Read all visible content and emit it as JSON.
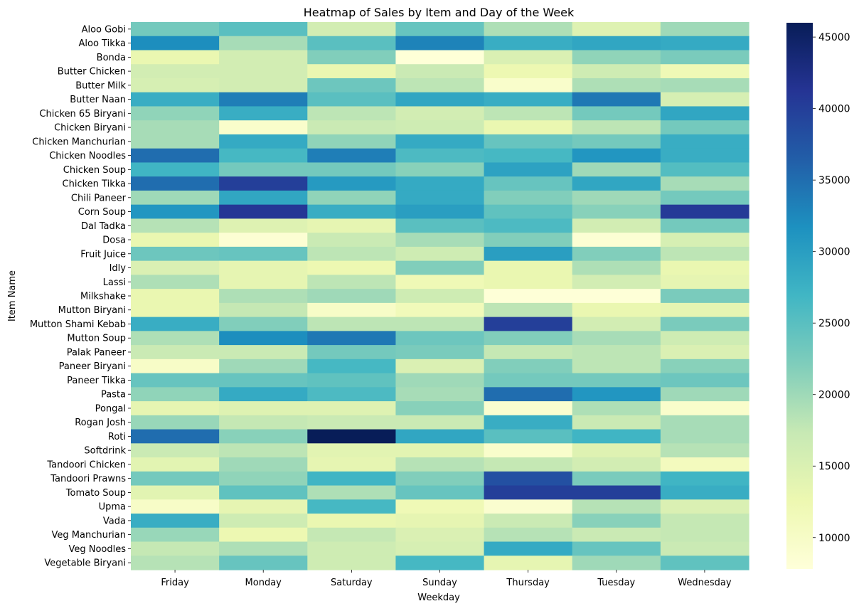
{
  "chart_data": {
    "type": "heatmap",
    "title": "Heatmap of Sales by Item and Day of the Week",
    "xlabel": "Weekday",
    "ylabel": "Item Name",
    "colormap": "YlGnBu",
    "vmin": 7800,
    "vmax": 46000,
    "colorbar_ticks": [
      10000,
      15000,
      20000,
      25000,
      30000,
      35000,
      40000,
      45000
    ],
    "colorbar_tick_labels": [
      "10000",
      "15000",
      "20000",
      "25000",
      "30000",
      "35000",
      "40000",
      "45000"
    ],
    "legend": "colorbar-right",
    "grid": false,
    "x_categories": [
      "Friday",
      "Monday",
      "Saturday",
      "Sunday",
      "Thursday",
      "Tuesday",
      "Wednesday"
    ],
    "y_categories": [
      "Aloo Gobi",
      "Aloo Tikka",
      "Bonda",
      "Butter Chicken",
      "Butter Milk",
      "Butter Naan",
      "Chicken 65 Biryani",
      "Chicken Biryani",
      "Chicken Manchurian",
      "Chicken Noodles",
      "Chicken Soup",
      "Chicken Tikka",
      "Chili Paneer",
      "Corn Soup",
      "Dal Tadka",
      "Dosa",
      "Fruit Juice",
      "Idly",
      "Lassi",
      "Milkshake",
      "Mutton Biryani",
      "Mutton Shami Kebab",
      "Mutton Soup",
      "Palak Paneer",
      "Paneer Biryani",
      "Paneer Tikka",
      "Pasta",
      "Pongal",
      "Rogan Josh",
      "Roti",
      "Softdrink",
      "Tandoori Chicken",
      "Tandoori Prawns",
      "Tomato Soup",
      "Upma",
      "Vada",
      "Veg Manchurian",
      "Veg Noodles",
      "Vegetable Biryani"
    ],
    "values": [
      [
        23000,
        25000,
        16000,
        24000,
        19000,
        14500,
        20000
      ],
      [
        32000,
        19500,
        25000,
        33000,
        28000,
        29000,
        28500
      ],
      [
        13000,
        16000,
        22000,
        8000,
        15000,
        21000,
        22500
      ],
      [
        16000,
        16000,
        13000,
        17000,
        12500,
        16500,
        12000
      ],
      [
        15500,
        16000,
        23500,
        18000,
        9500,
        19000,
        19500
      ],
      [
        28000,
        33500,
        25000,
        29000,
        28000,
        34000,
        15500
      ],
      [
        21000,
        28000,
        18000,
        16000,
        18000,
        23000,
        29000
      ],
      [
        19500,
        9500,
        17000,
        16500,
        13000,
        18000,
        23000
      ],
      [
        19500,
        28500,
        21000,
        28500,
        24000,
        23000,
        28000
      ],
      [
        35000,
        26500,
        33500,
        26000,
        26500,
        31000,
        28000
      ],
      [
        27000,
        23000,
        23000,
        21500,
        29500,
        20000,
        25500
      ],
      [
        35000,
        40000,
        30500,
        28500,
        24000,
        29000,
        19500
      ],
      [
        20000,
        29000,
        21000,
        28500,
        22000,
        20000,
        23000
      ],
      [
        31000,
        41000,
        28000,
        30000,
        24500,
        21500,
        40500
      ],
      [
        18500,
        14500,
        13500,
        25000,
        26000,
        16000,
        23000
      ],
      [
        13000,
        8500,
        17000,
        19500,
        22000,
        8500,
        15500
      ],
      [
        23500,
        24000,
        18000,
        16500,
        30000,
        22000,
        18000
      ],
      [
        15000,
        13500,
        12500,
        22000,
        13000,
        19000,
        13000
      ],
      [
        19000,
        13500,
        18000,
        12000,
        13000,
        16000,
        13500
      ],
      [
        13000,
        19000,
        20000,
        16500,
        8000,
        8000,
        22500
      ],
      [
        13000,
        17500,
        10000,
        11500,
        18000,
        13000,
        13500
      ],
      [
        28000,
        22000,
        18000,
        18000,
        40000,
        16000,
        22500
      ],
      [
        19000,
        32000,
        34000,
        23500,
        22000,
        19500,
        16500
      ],
      [
        17000,
        17000,
        23000,
        22500,
        17500,
        18000,
        15000
      ],
      [
        10000,
        20000,
        26500,
        15000,
        22000,
        18000,
        21500
      ],
      [
        24000,
        24000,
        24500,
        20000,
        23000,
        23000,
        23500
      ],
      [
        21000,
        28500,
        26000,
        19500,
        35000,
        31000,
        20000
      ],
      [
        13500,
        14500,
        14500,
        21500,
        9000,
        19000,
        9500
      ],
      [
        20500,
        17500,
        17000,
        17000,
        28000,
        17000,
        19500
      ],
      [
        35000,
        21500,
        46000,
        29000,
        25000,
        27000,
        19500
      ],
      [
        17000,
        18000,
        14000,
        14000,
        9500,
        14500,
        18500
      ],
      [
        14000,
        20000,
        13500,
        18500,
        17500,
        16000,
        11000
      ],
      [
        23000,
        21000,
        27000,
        22000,
        38000,
        22500,
        27000
      ],
      [
        14000,
        24500,
        19000,
        24000,
        40000,
        40000,
        28000
      ],
      [
        10000,
        13500,
        26500,
        12000,
        9000,
        18500,
        15000
      ],
      [
        28000,
        16500,
        13000,
        13500,
        17000,
        21500,
        17500
      ],
      [
        20500,
        12500,
        17500,
        15000,
        18500,
        17000,
        17500
      ],
      [
        17500,
        19000,
        16500,
        15500,
        28500,
        24000,
        17000
      ],
      [
        18500,
        24000,
        16500,
        26500,
        13500,
        20000,
        24500
      ]
    ]
  }
}
